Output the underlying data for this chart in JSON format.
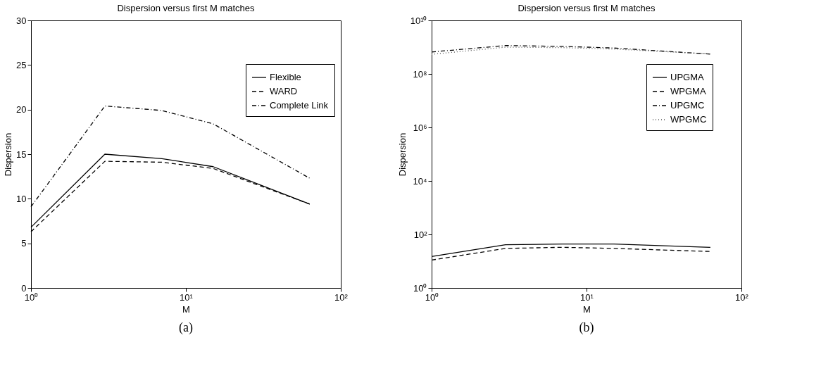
{
  "chart_data": [
    {
      "type": "line",
      "title": "Dispersion versus first M matches",
      "xlabel": "M",
      "ylabel": "Dispersion",
      "x": [
        1,
        3,
        7,
        15,
        63
      ],
      "log": "x",
      "grid": false,
      "legend": "top right",
      "marker": "none",
      "xlim": [
        1,
        100
      ],
      "xticks": [
        {
          "value": 1,
          "label": "10⁰"
        },
        {
          "value": 10,
          "label": "10¹"
        },
        {
          "value": 100,
          "label": "10²"
        }
      ],
      "ylim": [
        0,
        30
      ],
      "yticks": [
        0,
        5,
        10,
        15,
        20,
        25,
        30
      ],
      "annotations": [
        "(a)"
      ],
      "series": [
        {
          "name": "Flexible",
          "color": "#000000",
          "line_style": "solid",
          "values": [
            6.8,
            15.0,
            14.5,
            13.6,
            9.4
          ]
        },
        {
          "name": "WARD",
          "color": "#000000",
          "line_style": "dashed",
          "values": [
            6.3,
            14.2,
            14.1,
            13.4,
            9.4
          ]
        },
        {
          "name": "Complete Link",
          "color": "#000000",
          "line_style": "dashdot",
          "values": [
            9.1,
            20.4,
            19.9,
            18.4,
            12.3
          ]
        }
      ]
    },
    {
      "type": "line",
      "title": "Dispersion versus first M matches",
      "xlabel": "M",
      "ylabel": "Dispersion",
      "x": [
        1,
        3,
        7,
        15,
        63
      ],
      "log": "xy",
      "grid": false,
      "legend": "top right",
      "marker": "none",
      "xlim": [
        1,
        100
      ],
      "xticks": [
        {
          "value": 1,
          "label": "10⁰"
        },
        {
          "value": 10,
          "label": "10¹"
        },
        {
          "value": 100,
          "label": "10²"
        }
      ],
      "ylim": [
        1,
        10000000000
      ],
      "yticks": [
        {
          "value": 1,
          "label": "10⁰"
        },
        {
          "value": 100,
          "label": "10²"
        },
        {
          "value": 10000,
          "label": "10⁴"
        },
        {
          "value": 1000000,
          "label": "10⁶"
        },
        {
          "value": 100000000,
          "label": "10⁸"
        },
        {
          "value": 10000000000,
          "label": "10¹⁰"
        }
      ],
      "annotations": [
        "(b)"
      ],
      "series": [
        {
          "name": "UPGMA",
          "color": "#000000",
          "line_style": "solid",
          "values": [
            15,
            41,
            44,
            44,
            33
          ]
        },
        {
          "name": "WPGMA",
          "color": "#000000",
          "line_style": "dashed",
          "values": [
            11,
            30,
            33,
            30,
            23
          ]
        },
        {
          "name": "UPGMC",
          "color": "#000000",
          "line_style": "dashdot",
          "values": [
            660000000,
            1150000000,
            1070000000,
            930000000,
            550000000
          ]
        },
        {
          "name": "WPGMC",
          "color": "#555555",
          "line_style": "dotted",
          "values": [
            540000000,
            1000000000,
            960000000,
            850000000,
            560000000
          ]
        }
      ]
    }
  ]
}
